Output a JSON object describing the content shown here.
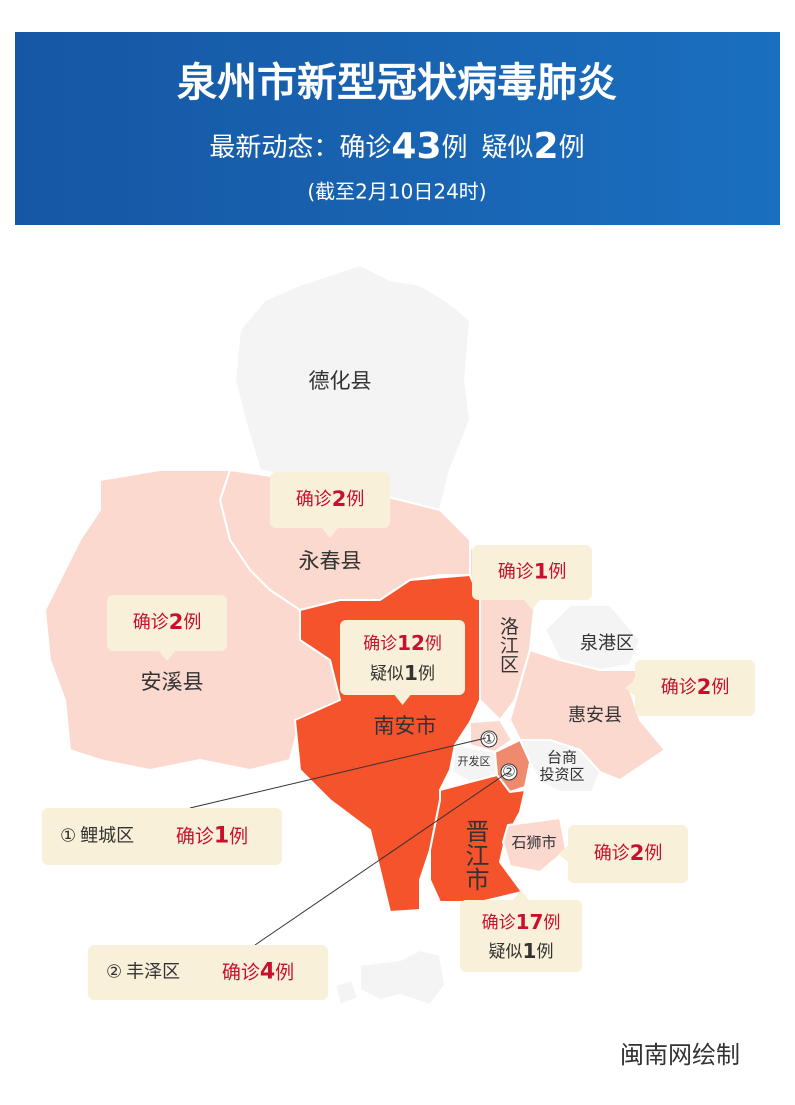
{
  "header": {
    "title": "泉州市新型冠状病毒肺炎",
    "summary": {
      "label": "最新动态：",
      "confirmed": {
        "label": "确诊",
        "count": 43,
        "unit": "例"
      },
      "suspected": {
        "label": "疑似",
        "count": 2,
        "unit": "例"
      }
    },
    "date": "(截至2月10日24时)"
  },
  "regions": [
    {
      "name": "德化县"
    },
    {
      "name": "永春县",
      "confirmed": {
        "label": "确诊",
        "count": 2,
        "unit": "例"
      }
    },
    {
      "name": "安溪县",
      "confirmed": {
        "label": "确诊",
        "count": 2,
        "unit": "例"
      }
    },
    {
      "name": "南安市",
      "confirmed": {
        "label": "确诊",
        "count": 12,
        "unit": "例"
      },
      "suspected": {
        "label": "疑似",
        "count": 1,
        "unit": "例"
      }
    },
    {
      "name": "洛江区",
      "confirmed": {
        "label": "确诊",
        "count": 1,
        "unit": "例"
      }
    },
    {
      "name": "泉港区"
    },
    {
      "name": "惠安县",
      "confirmed": {
        "label": "确诊",
        "count": 2,
        "unit": "例"
      }
    },
    {
      "name_lines": [
        "台商",
        "投资区"
      ]
    },
    {
      "name": "开发区"
    },
    {
      "name": "鲤城区",
      "marker": "①",
      "confirmed": {
        "label": "确诊",
        "count": 1,
        "unit": "例"
      }
    },
    {
      "name": "丰泽区",
      "marker": "②",
      "confirmed": {
        "label": "确诊",
        "count": 4,
        "unit": "例"
      }
    },
    {
      "name": "晋江市",
      "confirmed": {
        "label": "确诊",
        "count": 17,
        "unit": "例"
      },
      "suspected": {
        "label": "疑似",
        "count": 1,
        "unit": "例"
      }
    },
    {
      "name": "石狮市",
      "confirmed": {
        "label": "确诊",
        "count": 2,
        "unit": "例"
      }
    }
  ],
  "credit": "闽南网绘制"
}
